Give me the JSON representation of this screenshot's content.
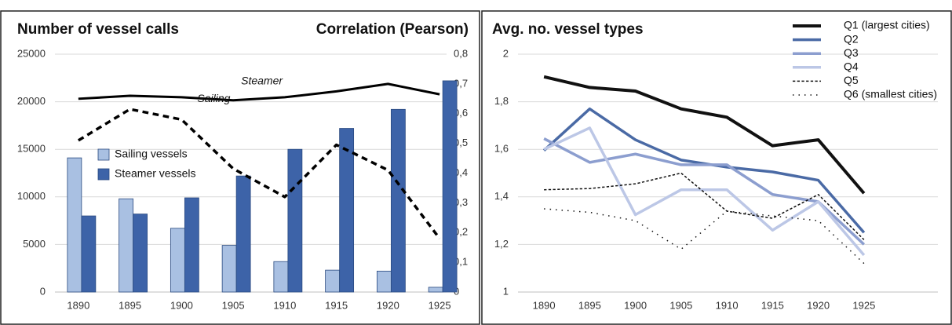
{
  "chart_data": [
    {
      "type": "bar",
      "title": "Number of vessel calls",
      "y2_label": "Correlation (Pearson)",
      "categories": [
        "1890",
        "1895",
        "1900",
        "1905",
        "1910",
        "1915",
        "1920",
        "1925"
      ],
      "series": [
        {
          "name": "Sailing vessels",
          "color": "#a9c0e2",
          "values": [
            14100,
            9800,
            6700,
            4900,
            3200,
            2300,
            2200,
            500
          ]
        },
        {
          "name": "Steamer vessels",
          "color": "#3d63a8",
          "values": [
            8000,
            8200,
            9900,
            12200,
            15000,
            17200,
            19200,
            22200
          ]
        },
        {
          "type": "line",
          "axis": "y2",
          "color": "#000000",
          "dash": "solid",
          "linewidth": 3,
          "values": [
            0.65,
            0.66,
            0.655,
            0.645,
            0.655,
            0.675,
            0.7,
            0.665
          ]
        },
        {
          "type": "line",
          "axis": "y2",
          "color": "#000000",
          "dash": "dashed",
          "linewidth": 3.5,
          "values": [
            0.51,
            0.615,
            0.58,
            0.415,
            0.32,
            0.495,
            0.41,
            0.18
          ]
        }
      ],
      "annotations": [
        "Steamer",
        "Sailing"
      ],
      "ylim": [
        0,
        25000
      ],
      "yticks": [
        0,
        5000,
        10000,
        15000,
        20000,
        25000
      ],
      "y2lim": [
        0,
        0.8
      ],
      "y2ticks": [
        0,
        {
          "value": 0.1,
          "label": "0,1"
        },
        {
          "value": 0.2,
          "label": "0,2"
        },
        {
          "value": 0.3,
          "label": "0,3"
        },
        {
          "value": 0.4,
          "label": "0,4"
        },
        {
          "value": 0.5,
          "label": "0,5"
        },
        {
          "value": 0.6,
          "label": "0,6"
        },
        {
          "value": 0.7,
          "label": "0,7"
        },
        {
          "value": 0.8,
          "label": "0,8"
        }
      ],
      "grid": true,
      "legend": "center-left"
    },
    {
      "type": "line",
      "title": "Avg. no. vessel types",
      "categories": [
        "1890",
        "1895",
        "1900",
        "1905",
        "1910",
        "1915",
        "1920",
        "1925"
      ],
      "series": [
        {
          "name": "Q1 (largest cities)",
          "color": "#111111",
          "dash": "solid",
          "linewidth": 4,
          "values": [
            1.905,
            1.86,
            1.845,
            1.77,
            1.735,
            1.615,
            1.64,
            1.415
          ]
        },
        {
          "name": "Q2",
          "color": "#4a6aa5",
          "dash": "solid",
          "linewidth": 3.5,
          "values": [
            1.595,
            1.77,
            1.64,
            1.555,
            1.525,
            1.505,
            1.47,
            1.25
          ]
        },
        {
          "name": "Q3",
          "color": "#8c9ecf",
          "dash": "solid",
          "linewidth": 3.5,
          "values": [
            1.645,
            1.545,
            1.58,
            1.535,
            1.535,
            1.41,
            1.38,
            1.2
          ]
        },
        {
          "name": "Q4",
          "color": "#bcc7e6",
          "dash": "solid",
          "linewidth": 3.5,
          "values": [
            1.6,
            1.69,
            1.325,
            1.43,
            1.43,
            1.26,
            1.38,
            1.155
          ]
        },
        {
          "name": "Q5",
          "color": "#111111",
          "dash": "dashed",
          "linewidth": 1.5,
          "values": [
            1.43,
            1.435,
            1.455,
            1.5,
            1.34,
            1.31,
            1.41,
            1.22
          ]
        },
        {
          "name": "Q6 (smallest cities)",
          "color": "#111111",
          "dash": "dotted",
          "linewidth": 1.5,
          "values": [
            1.35,
            1.335,
            1.3,
            1.18,
            1.34,
            1.32,
            1.3,
            1.12
          ]
        }
      ],
      "ylim": [
        1,
        2
      ],
      "yticks": [
        1,
        {
          "value": 1.2,
          "label": "1,2"
        },
        {
          "value": 1.4,
          "label": "1,4"
        },
        {
          "value": 1.6,
          "label": "1,6"
        },
        {
          "value": 1.8,
          "label": "1,8"
        },
        2
      ],
      "grid": true,
      "legend": "upper-right"
    }
  ]
}
